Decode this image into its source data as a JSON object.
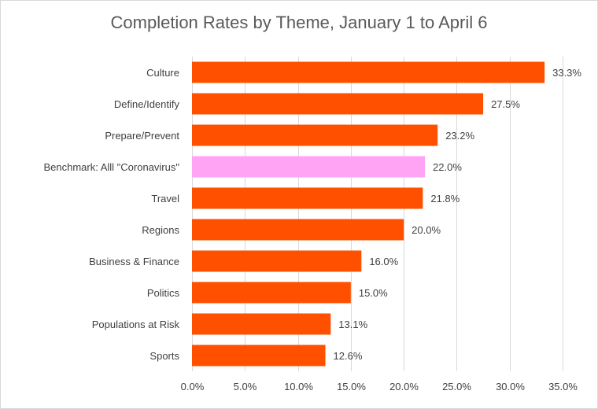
{
  "chart_data": {
    "type": "bar",
    "orientation": "horizontal",
    "title": "Completion Rates by Theme, January 1 to April 6",
    "xlabel": "",
    "ylabel": "",
    "categories": [
      "Culture",
      "Define/Identify",
      "Prepare/Prevent",
      "Benchmark: Alll \"Coronavirus\"",
      "Travel",
      "Regions",
      "Business & Finance",
      "Politics",
      "Populations at Risk",
      "Sports"
    ],
    "values": [
      33.3,
      27.5,
      23.2,
      22.0,
      21.8,
      20.0,
      16.0,
      15.0,
      13.1,
      12.6
    ],
    "data_labels": [
      "33.3%",
      "27.5%",
      "23.2%",
      "22.0%",
      "21.8%",
      "20.0%",
      "16.0%",
      "15.0%",
      "13.1%",
      "12.6%"
    ],
    "xlim": [
      0,
      35
    ],
    "xticks": [
      0,
      5,
      10,
      15,
      20,
      25,
      30,
      35
    ],
    "xtick_labels": [
      "0.0%",
      "5.0%",
      "10.0%",
      "15.0%",
      "20.0%",
      "25.0%",
      "30.0%",
      "35.0%"
    ],
    "grid": true,
    "legend": "none",
    "colors": {
      "default": "#ff5000",
      "highlight": "#ffa4f5",
      "highlight_category": "Benchmark: Alll \"Coronavirus\""
    }
  }
}
